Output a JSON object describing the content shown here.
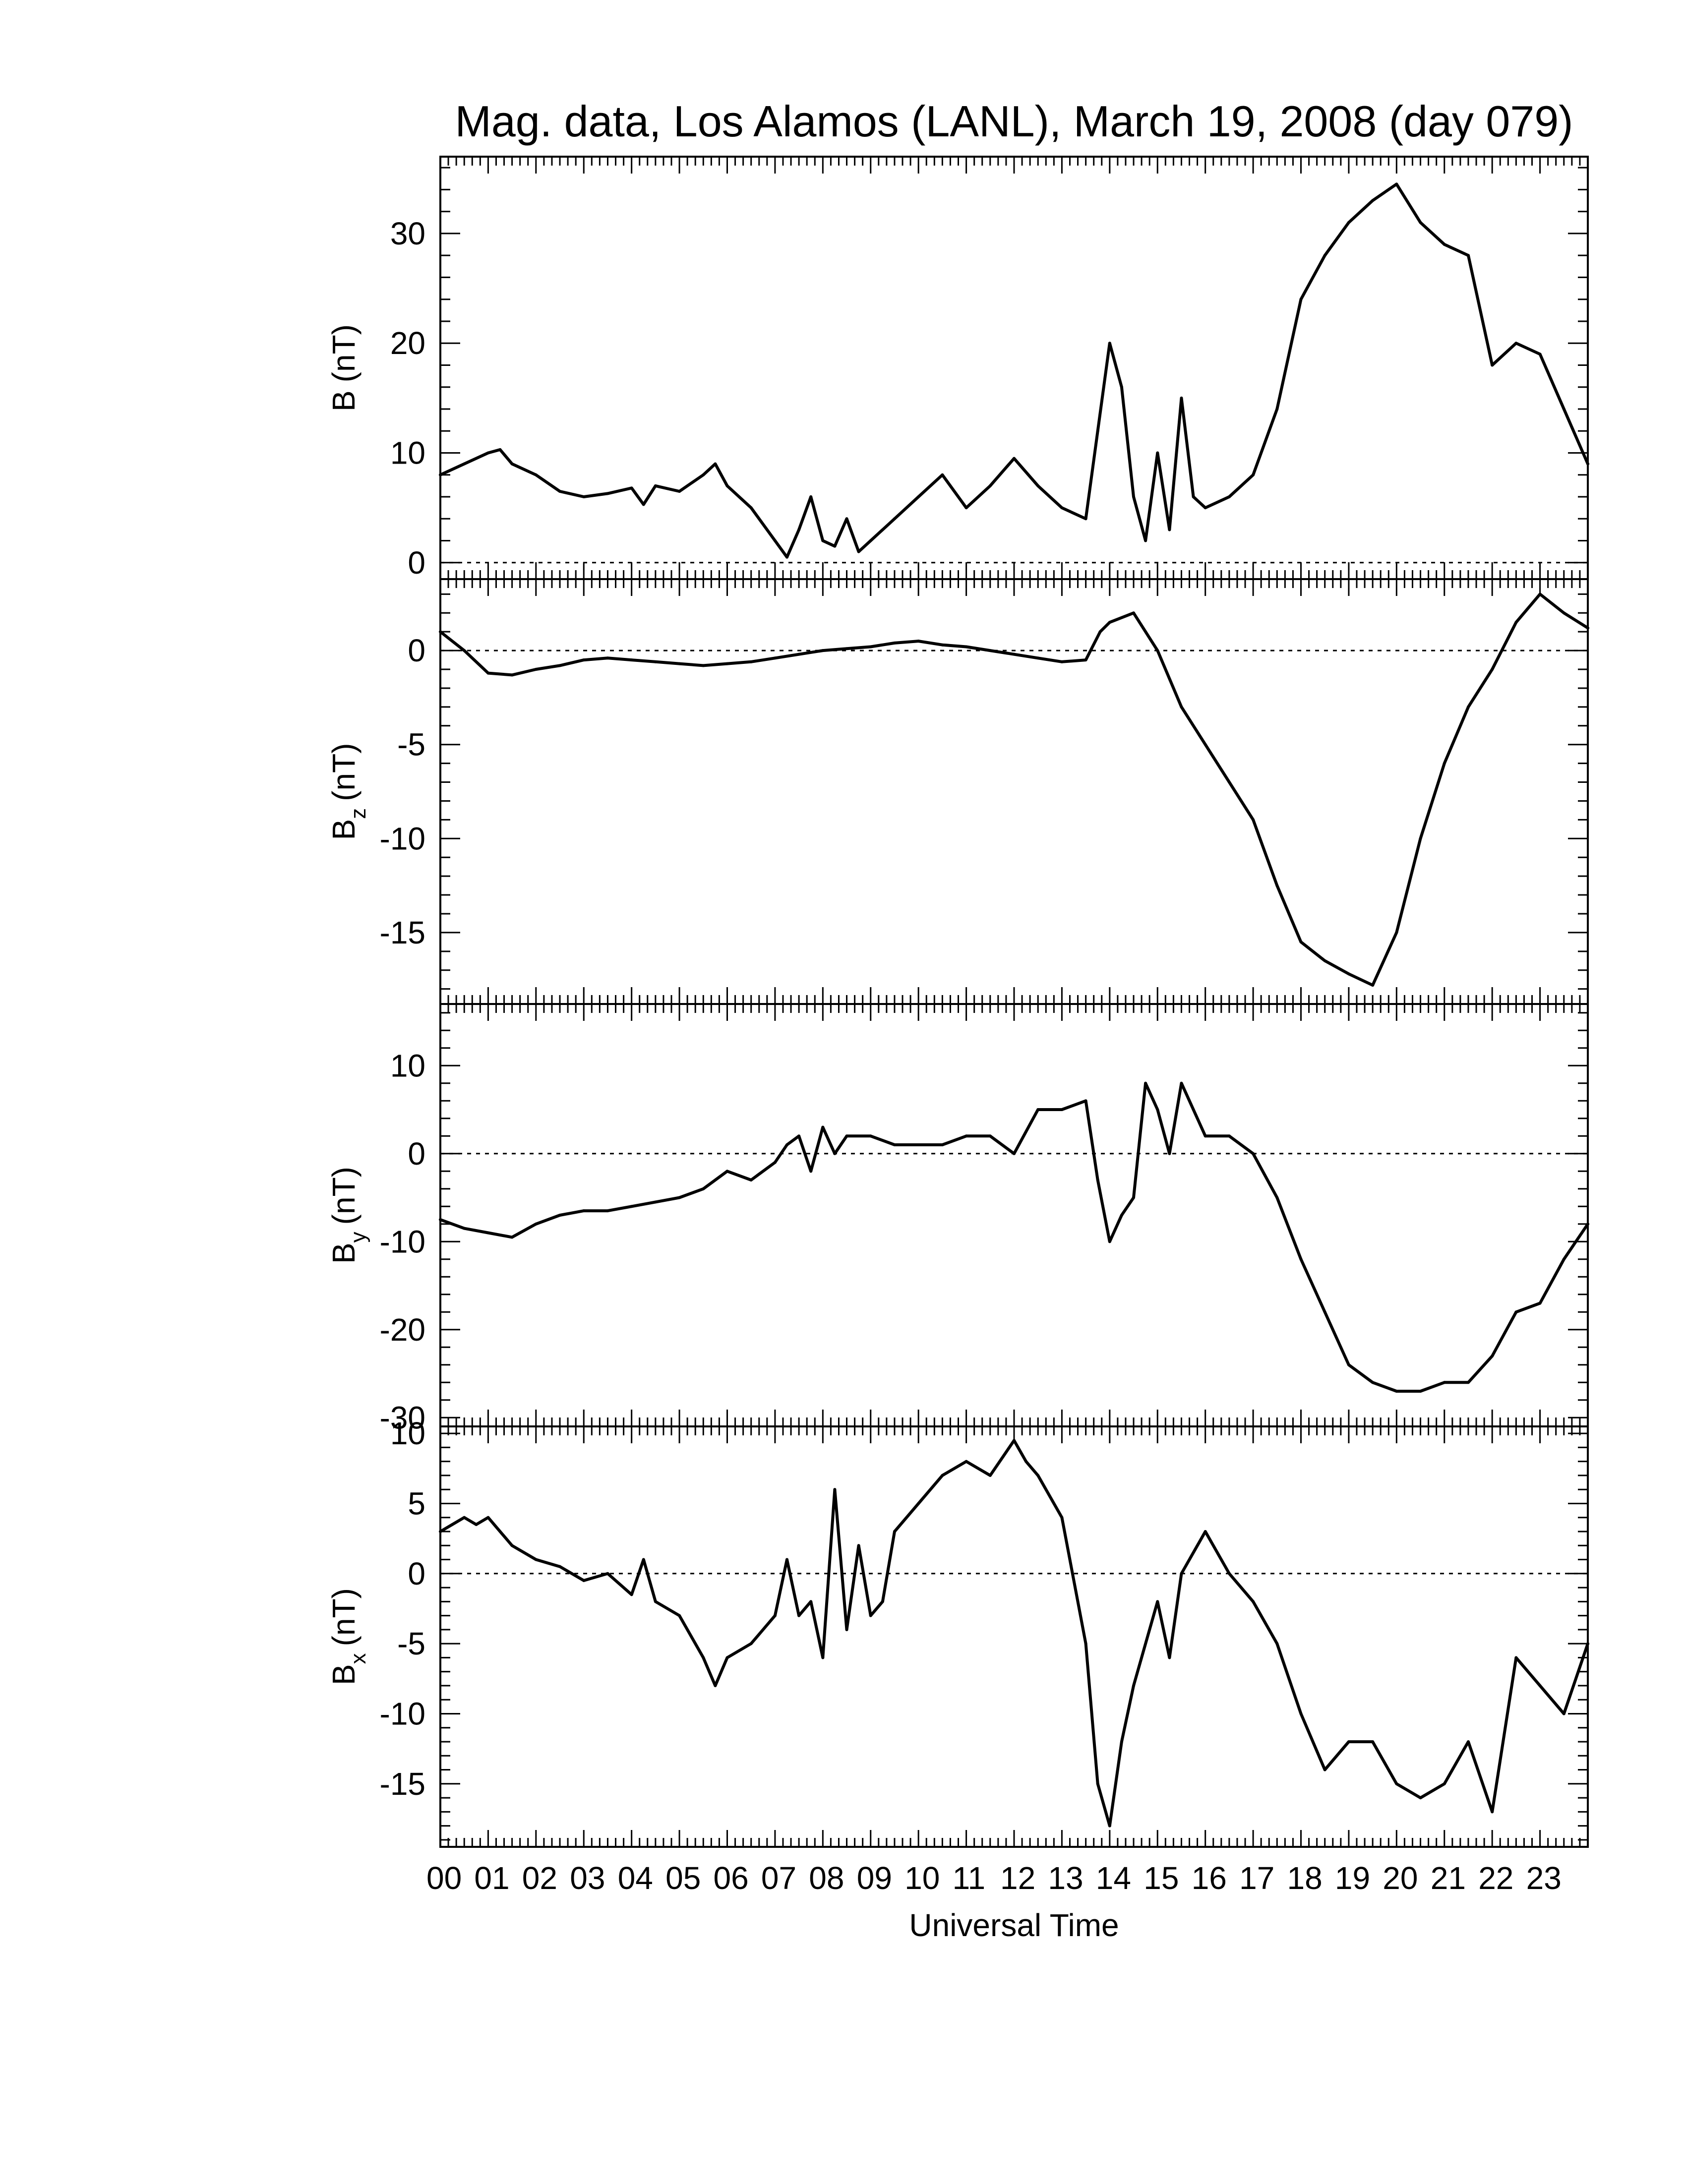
{
  "title": "Mag. data, Los Alamos (LANL), March 19, 2008 (day 079)",
  "chart_data": [
    {
      "type": "line",
      "id": "B",
      "ylabel": "B (nT)",
      "ylabel_main": "B",
      "ylabel_sub": "",
      "ylabel_unit": "(nT)",
      "ylim": [
        -1.5,
        37
      ],
      "yticks": [
        0,
        10,
        20,
        30
      ],
      "zero_line": true,
      "x": [
        0,
        0.5,
        1,
        1.25,
        1.5,
        2,
        2.5,
        3,
        3.5,
        4,
        4.25,
        4.5,
        5,
        5.5,
        5.75,
        6,
        6.5,
        7,
        7.25,
        7.5,
        7.75,
        8,
        8.25,
        8.5,
        8.75,
        9,
        9.5,
        10,
        10.5,
        11,
        11.5,
        12,
        12.5,
        13,
        13.5,
        13.75,
        14,
        14.25,
        14.5,
        14.75,
        15,
        15.25,
        15.5,
        15.75,
        16,
        16.5,
        17,
        17.5,
        18,
        18.5,
        19,
        19.5,
        20,
        20.5,
        21,
        21.5,
        22,
        22.5,
        23,
        23.5,
        24
      ],
      "values": [
        8,
        9,
        10,
        10.3,
        9,
        8,
        6.5,
        6,
        6.3,
        6.8,
        5.3,
        7,
        6.5,
        8,
        9,
        7,
        5,
        2,
        0.5,
        3,
        6,
        2,
        1.5,
        4,
        1,
        2,
        4,
        6,
        8,
        5,
        7,
        9.5,
        7,
        5,
        4,
        12,
        20,
        16,
        6,
        2,
        10,
        3,
        15,
        6,
        5,
        6,
        8,
        14,
        24,
        28,
        31,
        33,
        34.5,
        31,
        29,
        28,
        18,
        20,
        19,
        14,
        9
      ]
    },
    {
      "type": "line",
      "id": "Bz",
      "ylabel": "Bz (nT)",
      "ylabel_main": "B",
      "ylabel_sub": "z",
      "ylabel_unit": "(nT)",
      "ylim": [
        -18.8,
        3.8
      ],
      "yticks": [
        0,
        -5,
        -10,
        -15
      ],
      "zero_line": true,
      "x": [
        0,
        0.5,
        1,
        1.5,
        2,
        2.5,
        3,
        3.5,
        4,
        4.5,
        5,
        5.5,
        6,
        6.5,
        7,
        7.5,
        8,
        8.5,
        9,
        9.5,
        10,
        10.5,
        11,
        11.5,
        12,
        12.5,
        13,
        13.5,
        13.8,
        14,
        14.5,
        15,
        15.5,
        16,
        16.5,
        17,
        17.5,
        18,
        18.5,
        19,
        19.5,
        20,
        20.5,
        21,
        21.5,
        22,
        22.5,
        23,
        23.5,
        24
      ],
      "values": [
        1,
        0,
        -1.2,
        -1.3,
        -1,
        -0.8,
        -0.5,
        -0.4,
        -0.5,
        -0.6,
        -0.7,
        -0.8,
        -0.7,
        -0.6,
        -0.4,
        -0.2,
        0,
        0.1,
        0.2,
        0.4,
        0.5,
        0.3,
        0.2,
        0,
        -0.2,
        -0.4,
        -0.6,
        -0.5,
        1,
        1.5,
        2,
        0,
        -3,
        -5,
        -7,
        -9,
        -12.5,
        -15.5,
        -16.5,
        -17.2,
        -17.8,
        -15,
        -10,
        -6,
        -3,
        -1,
        1.5,
        3,
        2,
        1.2
      ]
    },
    {
      "type": "line",
      "id": "By",
      "ylabel": "By (nT)",
      "ylabel_main": "B",
      "ylabel_sub": "y",
      "ylabel_unit": "(nT)",
      "ylim": [
        -31,
        17
      ],
      "yticks": [
        10,
        0,
        -10,
        -20,
        -30
      ],
      "zero_line": true,
      "x": [
        0,
        0.5,
        1,
        1.5,
        2,
        2.5,
        3,
        3.5,
        4,
        4.5,
        5,
        5.5,
        6,
        6.5,
        7,
        7.25,
        7.5,
        7.75,
        8,
        8.25,
        8.5,
        9,
        9.5,
        10,
        10.5,
        11,
        11.5,
        12,
        12.5,
        13,
        13.5,
        13.75,
        14,
        14.25,
        14.5,
        14.75,
        15,
        15.25,
        15.5,
        15.75,
        16,
        16.5,
        17,
        17.5,
        18,
        18.5,
        19,
        19.5,
        20,
        20.5,
        21,
        21.5,
        22,
        22.5,
        23,
        23.5,
        24
      ],
      "values": [
        -7.5,
        -8.5,
        -9,
        -9.5,
        -8,
        -7,
        -6.5,
        -6.5,
        -6,
        -5.5,
        -5,
        -4,
        -2,
        -3,
        -1,
        1,
        2,
        -2,
        3,
        0,
        2,
        2,
        1,
        1,
        1,
        2,
        2,
        0,
        5,
        5,
        6,
        -3,
        -10,
        -7,
        -5,
        8,
        5,
        0,
        8,
        5,
        2,
        2,
        0,
        -5,
        -12,
        -18,
        -24,
        -26,
        -27,
        -27,
        -26,
        -26,
        -23,
        -18,
        -17,
        -12,
        -8
      ]
    },
    {
      "type": "line",
      "id": "Bx",
      "ylabel": "Bx (nT)",
      "ylabel_main": "B",
      "ylabel_sub": "x",
      "ylabel_unit": "(nT)",
      "ylim": [
        -19.5,
        10.5
      ],
      "yticks": [
        10,
        5,
        0,
        -5,
        -10,
        -15
      ],
      "zero_line": true,
      "x": [
        0,
        0.25,
        0.5,
        0.75,
        1,
        1.5,
        2,
        2.5,
        3,
        3.5,
        4,
        4.25,
        4.5,
        5,
        5.5,
        5.75,
        6,
        6.5,
        7,
        7.25,
        7.5,
        7.75,
        8,
        8.25,
        8.5,
        8.75,
        9,
        9.25,
        9.5,
        10,
        10.5,
        11,
        11.5,
        12,
        12.25,
        12.5,
        13,
        13.5,
        13.75,
        14,
        14.25,
        14.5,
        15,
        15.25,
        15.5,
        16,
        16.5,
        17,
        17.5,
        18,
        18.5,
        19,
        19.5,
        20,
        20.5,
        21,
        21.5,
        22,
        22.5,
        23,
        23.5,
        24
      ],
      "values": [
        3,
        3.5,
        4,
        3.5,
        4,
        2,
        1,
        0.5,
        -0.5,
        0,
        -1.5,
        1,
        -2,
        -3,
        -6,
        -8,
        -6,
        -5,
        -3,
        1,
        -3,
        -2,
        -6,
        6,
        -4,
        2,
        -3,
        -2,
        3,
        5,
        7,
        8,
        7,
        9.5,
        8,
        7,
        4,
        -5,
        -15,
        -18,
        -12,
        -8,
        -2,
        -6,
        0,
        3,
        0,
        -2,
        -5,
        -10,
        -14,
        -12,
        -12,
        -15,
        -16,
        -15,
        -12,
        -17,
        -6,
        -8,
        -10,
        -5
      ]
    }
  ],
  "x_axis": {
    "label": "Universal Time",
    "xlim": [
      0,
      24
    ],
    "tick_labels": [
      "00",
      "01",
      "02",
      "03",
      "04",
      "05",
      "06",
      "07",
      "08",
      "09",
      "10",
      "11",
      "12",
      "13",
      "14",
      "15",
      "16",
      "17",
      "18",
      "19",
      "20",
      "21",
      "22",
      "23"
    ]
  }
}
